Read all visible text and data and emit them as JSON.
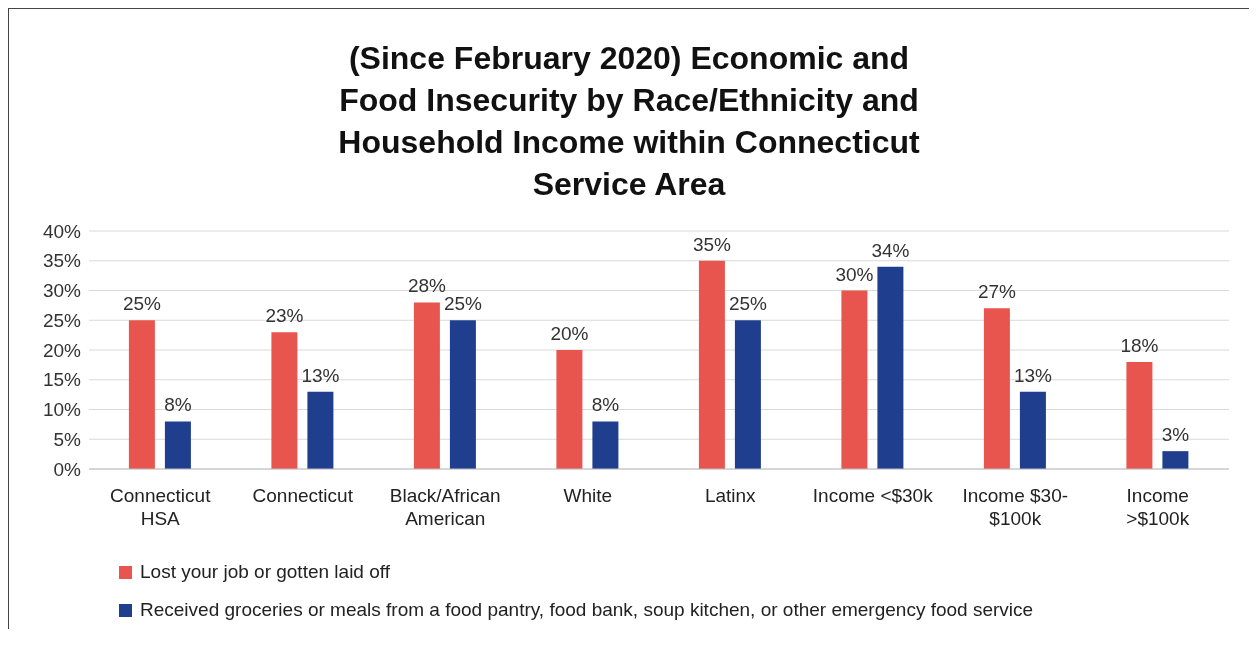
{
  "chart_data": {
    "type": "bar",
    "title": "(Since February 2020) Economic and Food Insecurity by Race/Ethnicity and Household Income within Connecticut Service Area",
    "categories": [
      "Connecticut HSA",
      "Connecticut",
      "Black/African American",
      "White",
      "Latinx",
      "Income <$30k",
      "Income $30-$100k",
      "Income >$100k"
    ],
    "series": [
      {
        "name": "Lost your job or gotten laid off",
        "color": "#e8554e",
        "values": [
          25,
          23,
          28,
          20,
          35,
          30,
          27,
          18
        ],
        "value_labels": [
          "25%",
          "23%",
          "28%",
          "20%",
          "35%",
          "30%",
          "27%",
          "18%"
        ]
      },
      {
        "name": "Received groceries or meals from a food pantry, food bank, soup kitchen, or other emergency food service",
        "color": "#1f3f8e",
        "values": [
          8,
          13,
          25,
          8,
          25,
          34,
          13,
          3
        ],
        "value_labels": [
          "8%",
          "13%",
          "25%",
          "8%",
          "25%",
          "34%",
          "13%",
          "3%"
        ]
      }
    ],
    "ylim": [
      0,
      40
    ],
    "yticks": [
      {
        "value": 0,
        "label": "0%"
      },
      {
        "value": 5,
        "label": "5%"
      },
      {
        "value": 10,
        "label": "10%"
      },
      {
        "value": 15,
        "label": "15%"
      },
      {
        "value": 20,
        "label": "20%"
      },
      {
        "value": 25,
        "label": "25%"
      },
      {
        "value": 30,
        "label": "30%"
      },
      {
        "value": 35,
        "label": "35%"
      },
      {
        "value": 40,
        "label": "40%"
      }
    ],
    "grid": "y",
    "legend": "bottom"
  }
}
